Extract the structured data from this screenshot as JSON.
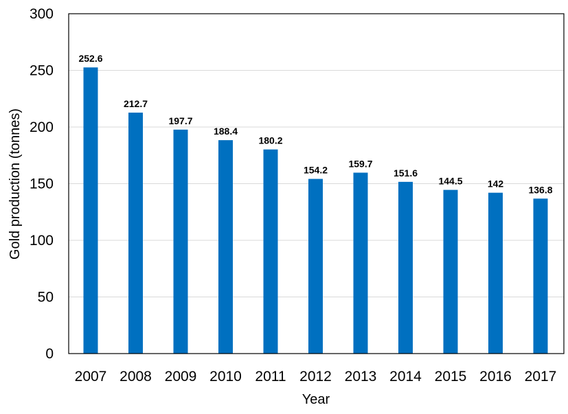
{
  "colors": {
    "bar": "#0070C0",
    "grid": "#d9d9d9",
    "axis": "#000000"
  },
  "chart_data": {
    "type": "bar",
    "title": "",
    "xlabel": "Year",
    "ylabel": "Gold production (tonnes)",
    "categories": [
      "2007",
      "2008",
      "2009",
      "2010",
      "2011",
      "2012",
      "2013",
      "2014",
      "2015",
      "2016",
      "2017"
    ],
    "values": [
      252.6,
      212.7,
      197.7,
      188.4,
      180.2,
      154.2,
      159.7,
      151.6,
      144.5,
      142,
      136.8
    ],
    "data_labels": [
      "252.6",
      "212.7",
      "197.7",
      "188.4",
      "180.2",
      "154.2",
      "159.7",
      "151.6",
      "144.5",
      "142",
      "136.8"
    ],
    "ylim": [
      0,
      300
    ],
    "yticks": [
      "0",
      "50",
      "100",
      "150",
      "200",
      "250",
      "300"
    ],
    "grid": true,
    "legend": "none"
  }
}
